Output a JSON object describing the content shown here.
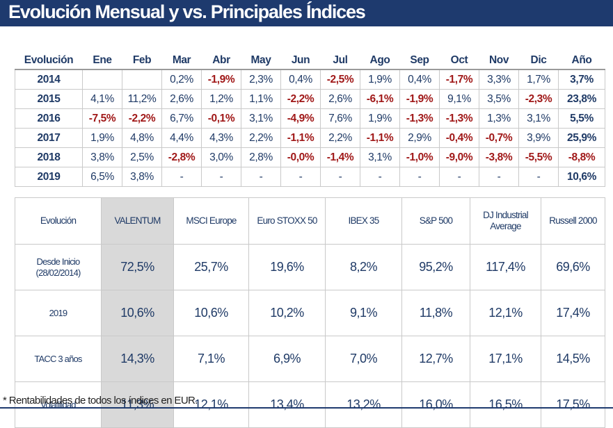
{
  "title": "Evolución Mensual y vs. Principales Índices",
  "colors": {
    "title_bg": "#1e3a6e",
    "text": "#1f3a66",
    "negative": "#a01818",
    "highlight": "#d9d9d9"
  },
  "monthly": {
    "headers": [
      "Evolución",
      "Ene",
      "Feb",
      "Mar",
      "Abr",
      "May",
      "Jun",
      "Jul",
      "Ago",
      "Sep",
      "Oct",
      "Nov",
      "Dic",
      "Año"
    ],
    "rows": [
      {
        "year": "2014",
        "cells": [
          "",
          "",
          "0,2%",
          "-1,9%",
          "2,3%",
          "0,4%",
          "-2,5%",
          "1,9%",
          "0,4%",
          "-1,7%",
          "3,3%",
          "1,7%",
          "3,7%"
        ]
      },
      {
        "year": "2015",
        "cells": [
          "4,1%",
          "11,2%",
          "2,6%",
          "1,2%",
          "1,1%",
          "-2,2%",
          "2,6%",
          "-6,1%",
          "-1,9%",
          "9,1%",
          "3,5%",
          "-2,3%",
          "23,8%"
        ]
      },
      {
        "year": "2016",
        "cells": [
          "-7,5%",
          "-2,2%",
          "6,7%",
          "-0,1%",
          "3,1%",
          "-4,9%",
          "7,6%",
          "1,9%",
          "-1,3%",
          "-1,3%",
          "1,3%",
          "3,1%",
          "5,5%"
        ]
      },
      {
        "year": "2017",
        "cells": [
          "1,9%",
          "4,8%",
          "4,4%",
          "4,3%",
          "2,2%",
          "-1,1%",
          "2,2%",
          "-1,1%",
          "2,9%",
          "-0,4%",
          "-0,7%",
          "3,9%",
          "25,9%"
        ]
      },
      {
        "year": "2018",
        "cells": [
          "3,8%",
          "2,5%",
          "-2,8%",
          "3,0%",
          "2,8%",
          "-0,0%",
          "-1,4%",
          "3,1%",
          "-1,0%",
          "-9,0%",
          "-3,8%",
          "-5,5%",
          "-8,8%"
        ]
      },
      {
        "year": "2019",
        "cells": [
          "6,5%",
          "3,8%",
          "-",
          "-",
          "-",
          "-",
          "-",
          "-",
          "-",
          "-",
          "-",
          "-",
          "10,6%"
        ]
      }
    ]
  },
  "indices": {
    "headers": [
      "Evolución",
      "VALENTUM",
      "MSCI Europe",
      "Euro STOXX 50",
      "IBEX 35",
      "S&P 500",
      "DJ Industrial Average",
      "Russell 2000"
    ],
    "rows": [
      {
        "label": "Desde Inicio (28/02/2014)",
        "values": [
          "72,5%",
          "25,7%",
          "19,6%",
          "8,2%",
          "95,2%",
          "117,4%",
          "69,6%"
        ]
      },
      {
        "label": "2019",
        "values": [
          "10,6%",
          "10,6%",
          "10,2%",
          "9,1%",
          "11,8%",
          "12,1%",
          "17,4%"
        ]
      },
      {
        "label": "TACC 3 años",
        "values": [
          "14,3%",
          "7,1%",
          "6,9%",
          "7,0%",
          "12,7%",
          "17,1%",
          "14,5%"
        ]
      },
      {
        "label": "Volatilidad",
        "values": [
          "11,3%",
          "12,1%",
          "13,4%",
          "13,2%",
          "16,0%",
          "16,5%",
          "17,5%"
        ]
      }
    ]
  },
  "footnote": "* Rentabilidades de todos los índices en EUR."
}
